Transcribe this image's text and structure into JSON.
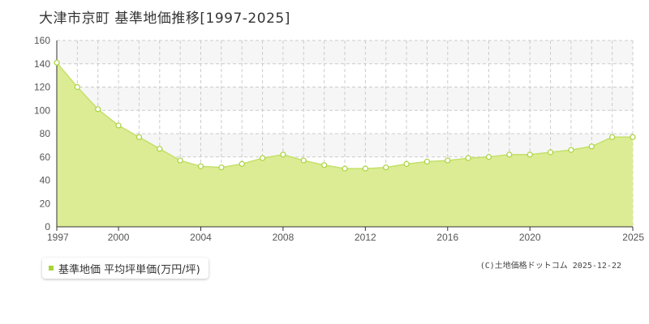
{
  "title": "大津市京町 基準地価推移[1997-2025]",
  "legend_label": "基準地価 平均坪単価(万円/坪)",
  "copyright": "(C)土地価格ドットコム 2025-12-22",
  "colors": {
    "area_fill": "#dcec94",
    "line": "#c4e06a",
    "marker_stroke": "#a9d33a",
    "grid": "#cccccc",
    "band": "#f6f6f6",
    "legend_marker": "#a9d33a"
  },
  "chart_data": {
    "type": "area",
    "title": "大津市京町 基準地価推移[1997-2025]",
    "xlabel": "",
    "ylabel": "",
    "xlim": [
      1997,
      2025
    ],
    "ylim": [
      0,
      160
    ],
    "x_ticks": [
      1997,
      2000,
      2004,
      2008,
      2012,
      2016,
      2020,
      2025
    ],
    "y_ticks": [
      0,
      20,
      40,
      60,
      80,
      100,
      120,
      140,
      160
    ],
    "grid": true,
    "legend_position": "bottom-left",
    "series": [
      {
        "name": "基準地価 平均坪単価(万円/坪)",
        "x": [
          1997,
          1998,
          1999,
          2000,
          2001,
          2002,
          2003,
          2004,
          2005,
          2006,
          2007,
          2008,
          2009,
          2010,
          2011,
          2012,
          2013,
          2014,
          2015,
          2016,
          2017,
          2018,
          2019,
          2020,
          2021,
          2022,
          2023,
          2024,
          2025
        ],
        "values": [
          141,
          120,
          101,
          87,
          77,
          67,
          57,
          52,
          51,
          54,
          59,
          62,
          57,
          53,
          50,
          50,
          51,
          54,
          56,
          57,
          59,
          60,
          62,
          62,
          64,
          66,
          69,
          77,
          77
        ]
      }
    ]
  }
}
